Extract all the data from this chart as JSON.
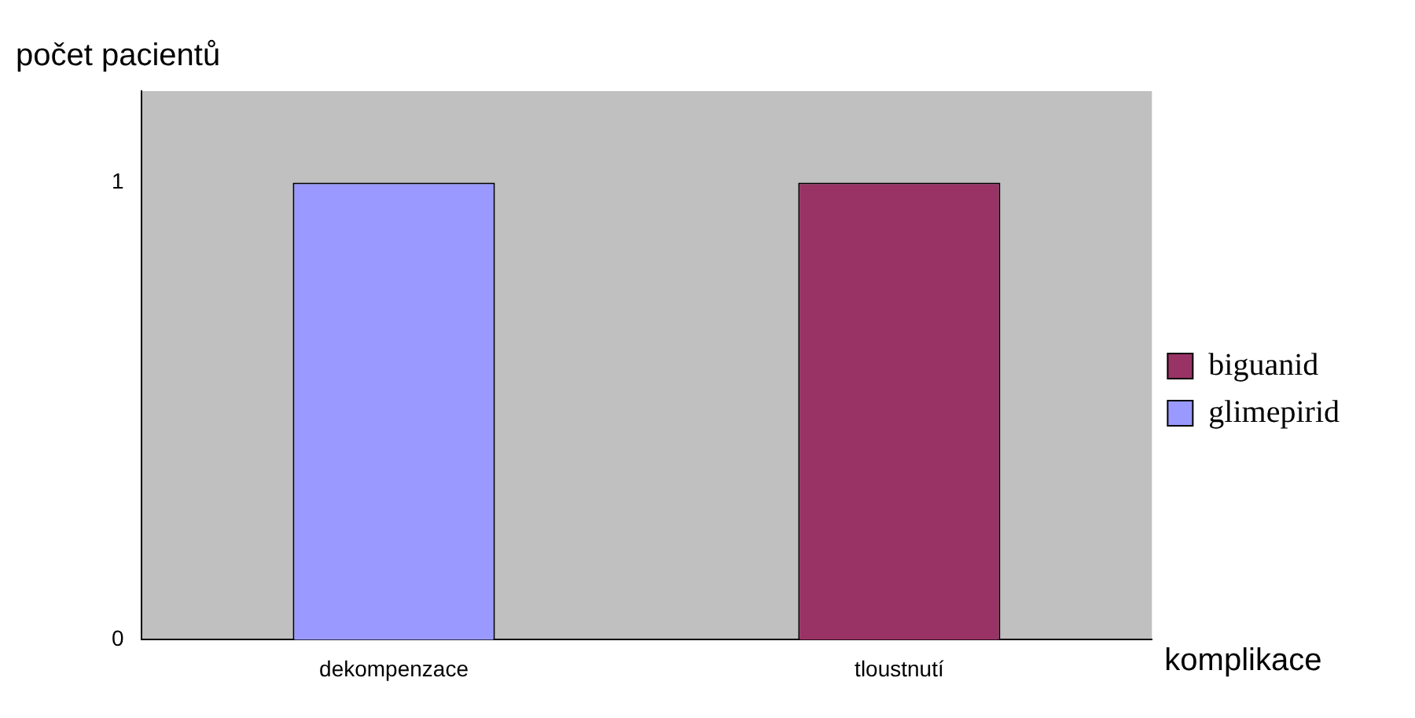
{
  "chart_data": {
    "type": "bar",
    "stacked": true,
    "xlabel": "komplikace",
    "ylabel": "počet pacientů",
    "categories": [
      "dekompenzace",
      "tloustnutí"
    ],
    "series": [
      {
        "name": "glimepirid",
        "color": "#9999ff",
        "values": [
          1,
          0
        ]
      },
      {
        "name": "biguanid",
        "color": "#993366",
        "values": [
          0,
          1
        ]
      }
    ],
    "ylim": [
      0,
      1.2
    ],
    "yticks": [
      0,
      1
    ],
    "grid": false,
    "legend": "right"
  }
}
